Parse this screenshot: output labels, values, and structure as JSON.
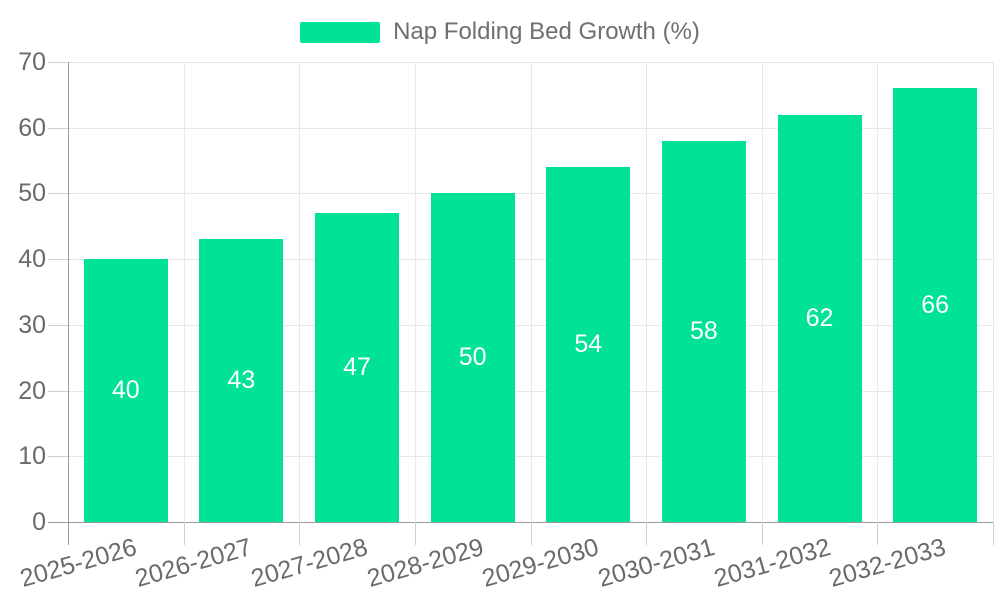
{
  "chart_data": {
    "type": "bar",
    "title": "Nap Folding Bed Growth (%)",
    "legend_position": "top",
    "categories": [
      "2025-2026",
      "2026-2027",
      "2027-2028",
      "2028-2029",
      "2029-2030",
      "2030-2031",
      "2031-2032",
      "2032-2033"
    ],
    "values": [
      40,
      43,
      47,
      50,
      54,
      58,
      62,
      66
    ],
    "ylim": [
      0,
      70
    ],
    "yticks": [
      0,
      10,
      20,
      30,
      40,
      50,
      60,
      70
    ],
    "grid": true,
    "bar_color": "#00E396",
    "data_label_color": "#ffffff"
  },
  "colors": {
    "background": "#ffffff",
    "axis": "#9b9b9b",
    "gridline": "#e8e8e8",
    "tick": "#cfcfcf",
    "tick_text": "#6a6a6a",
    "legend_text": "#6f6f6f"
  }
}
